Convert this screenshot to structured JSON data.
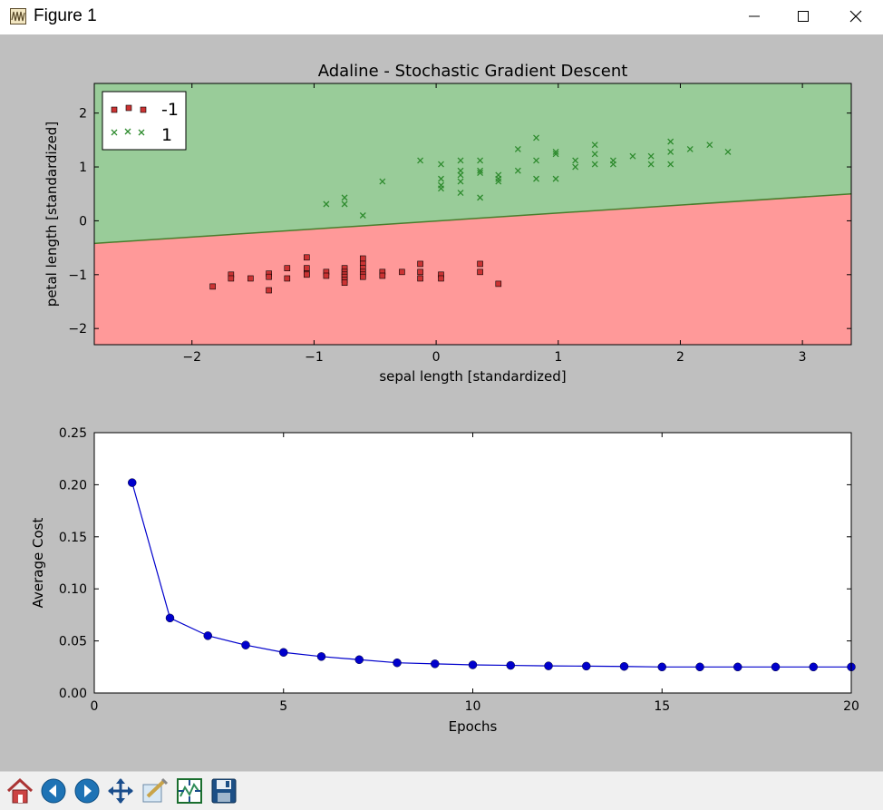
{
  "window": {
    "title": "Figure 1",
    "icon": "matplotlib-figure-icon",
    "controls": [
      "minimize-icon",
      "maximize-icon",
      "close-icon"
    ]
  },
  "toolbar": {
    "buttons": [
      "home-icon",
      "back-icon",
      "forward-icon",
      "pan-icon",
      "zoom-icon",
      "configure-subplots-icon",
      "save-icon"
    ]
  },
  "chart_data": [
    {
      "type": "scatter",
      "title": "Adaline - Stochastic Gradient Descent",
      "xlabel": "sepal length [standardized]",
      "ylabel": "petal length [standardized]",
      "xlim": [
        -2.8,
        3.4
      ],
      "ylim": [
        -2.3,
        2.55
      ],
      "xticks": [
        -2,
        -1,
        0,
        1,
        2,
        3
      ],
      "yticks": [
        -2,
        -1,
        0,
        1,
        2
      ],
      "xtick_labels": [
        "−2",
        "−1",
        "0",
        "1",
        "2",
        "3"
      ],
      "ytick_labels": [
        "−2",
        "−1",
        "0",
        "1",
        "2"
      ],
      "legend_position": "upper-left",
      "decision_boundary": {
        "x": [
          -2.8,
          3.4
        ],
        "y": [
          -0.42,
          0.5
        ]
      },
      "region_colors": {
        "class_1": "#99cc99",
        "class_neg1": "#ff9999",
        "boundary": "#4a7d2c"
      },
      "series": [
        {
          "name": "-1",
          "marker": "square",
          "color": "#cc3333",
          "points": [
            [
              -1.83,
              -1.22
            ],
            [
              -1.68,
              -1.0
            ],
            [
              -1.68,
              -1.07
            ],
            [
              -1.52,
              -1.07
            ],
            [
              -1.37,
              -0.98
            ],
            [
              -1.37,
              -1.04
            ],
            [
              -1.37,
              -1.29
            ],
            [
              -1.22,
              -0.88
            ],
            [
              -1.22,
              -1.07
            ],
            [
              -1.06,
              -0.68
            ],
            [
              -1.06,
              -0.88
            ],
            [
              -1.06,
              -0.98
            ],
            [
              -1.06,
              -1.0
            ],
            [
              -0.9,
              -0.95
            ],
            [
              -0.9,
              -1.02
            ],
            [
              -0.75,
              -0.88
            ],
            [
              -0.75,
              -0.95
            ],
            [
              -0.75,
              -1.0
            ],
            [
              -0.75,
              -1.04
            ],
            [
              -0.75,
              -1.1
            ],
            [
              -0.75,
              -1.15
            ],
            [
              -0.6,
              -0.7
            ],
            [
              -0.6,
              -0.8
            ],
            [
              -0.6,
              -0.88
            ],
            [
              -0.6,
              -0.95
            ],
            [
              -0.6,
              -1.0
            ],
            [
              -0.6,
              -1.04
            ],
            [
              -0.44,
              -0.95
            ],
            [
              -0.44,
              -1.02
            ],
            [
              -0.28,
              -0.95
            ],
            [
              -0.13,
              -0.8
            ],
            [
              -0.13,
              -0.95
            ],
            [
              -0.13,
              -1.07
            ],
            [
              0.04,
              -1.0
            ],
            [
              0.04,
              -1.07
            ],
            [
              0.36,
              -0.8
            ],
            [
              0.36,
              -0.95
            ],
            [
              0.51,
              -1.17
            ]
          ]
        },
        {
          "name": "1",
          "marker": "x",
          "color": "#2e8b2e",
          "points": [
            [
              -0.9,
              0.31
            ],
            [
              -0.75,
              0.31
            ],
            [
              -0.75,
              0.43
            ],
            [
              -0.6,
              0.1
            ],
            [
              -0.44,
              0.73
            ],
            [
              -0.13,
              1.12
            ],
            [
              0.04,
              0.6
            ],
            [
              0.04,
              0.66
            ],
            [
              0.04,
              0.78
            ],
            [
              0.04,
              1.05
            ],
            [
              0.2,
              0.52
            ],
            [
              0.2,
              0.73
            ],
            [
              0.2,
              0.85
            ],
            [
              0.2,
              0.93
            ],
            [
              0.2,
              1.12
            ],
            [
              0.36,
              0.43
            ],
            [
              0.36,
              0.89
            ],
            [
              0.36,
              0.93
            ],
            [
              0.36,
              1.12
            ],
            [
              0.51,
              0.73
            ],
            [
              0.51,
              0.78
            ],
            [
              0.51,
              0.85
            ],
            [
              0.67,
              0.93
            ],
            [
              0.67,
              1.33
            ],
            [
              0.82,
              0.78
            ],
            [
              0.82,
              1.12
            ],
            [
              0.82,
              1.54
            ],
            [
              0.98,
              0.78
            ],
            [
              0.98,
              1.24
            ],
            [
              0.98,
              1.28
            ],
            [
              1.14,
              1.0
            ],
            [
              1.14,
              1.12
            ],
            [
              1.3,
              1.05
            ],
            [
              1.3,
              1.24
            ],
            [
              1.3,
              1.41
            ],
            [
              1.45,
              1.05
            ],
            [
              1.45,
              1.12
            ],
            [
              1.61,
              1.2
            ],
            [
              1.76,
              1.05
            ],
            [
              1.76,
              1.2
            ],
            [
              1.92,
              1.05
            ],
            [
              1.92,
              1.28
            ],
            [
              1.92,
              1.47
            ],
            [
              2.08,
              1.33
            ],
            [
              2.24,
              1.41
            ],
            [
              2.39,
              1.28
            ]
          ]
        }
      ]
    },
    {
      "type": "line",
      "title": "",
      "xlabel": "Epochs",
      "ylabel": "Average Cost",
      "xlim": [
        0,
        20
      ],
      "ylim": [
        0,
        0.25
      ],
      "xticks": [
        0,
        5,
        10,
        15,
        20
      ],
      "yticks": [
        0.0,
        0.05,
        0.1,
        0.15,
        0.2,
        0.25
      ],
      "xtick_labels": [
        "0",
        "5",
        "10",
        "15",
        "20"
      ],
      "ytick_labels": [
        "0.00",
        "0.05",
        "0.10",
        "0.15",
        "0.20",
        "0.25"
      ],
      "color": "#0000cc",
      "marker": "circle",
      "x": [
        1,
        2,
        3,
        4,
        5,
        6,
        7,
        8,
        9,
        10,
        11,
        12,
        13,
        14,
        15,
        16,
        17,
        18,
        19,
        20
      ],
      "y": [
        0.202,
        0.072,
        0.055,
        0.046,
        0.039,
        0.035,
        0.032,
        0.029,
        0.028,
        0.027,
        0.0265,
        0.026,
        0.0258,
        0.0255,
        0.025,
        0.025,
        0.025,
        0.025,
        0.025,
        0.025
      ]
    }
  ]
}
